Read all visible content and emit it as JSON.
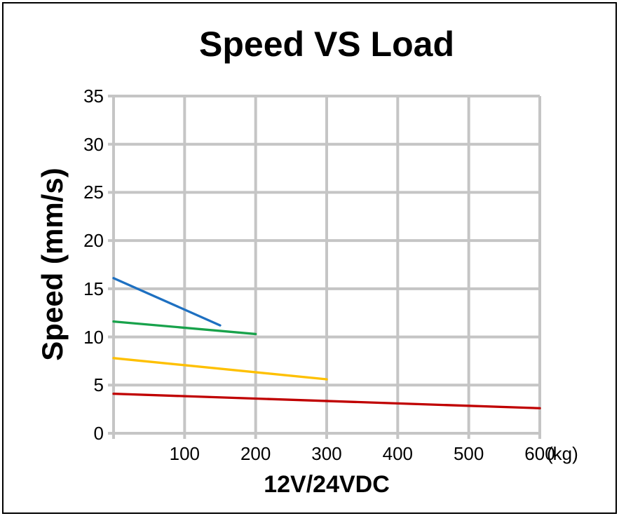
{
  "chart_data": {
    "type": "line",
    "title": "Speed VS Load",
    "xlabel": "12V/24VDC",
    "ylabel": "Speed (mm/s)",
    "x_unit": "(kg)",
    "xlim": [
      0,
      600
    ],
    "ylim": [
      0,
      35
    ],
    "x_ticks": [
      100,
      200,
      300,
      400,
      500,
      600
    ],
    "y_ticks": [
      0,
      5,
      10,
      15,
      20,
      25,
      30,
      35
    ],
    "grid": true,
    "legend_position": "none",
    "grid_color": "#c5c5c5",
    "background_color": "#ffffff",
    "series": [
      {
        "name": "blue-line",
        "color": "#1e70c1",
        "points": [
          [
            0,
            16.1
          ],
          [
            150,
            11.2
          ]
        ]
      },
      {
        "name": "green-line",
        "color": "#18a24b",
        "points": [
          [
            0,
            11.6
          ],
          [
            200,
            10.3
          ]
        ]
      },
      {
        "name": "yellow-line",
        "color": "#fec000",
        "points": [
          [
            0,
            7.8
          ],
          [
            300,
            5.6
          ]
        ]
      },
      {
        "name": "red-line",
        "color": "#c00000",
        "points": [
          [
            0,
            4.1
          ],
          [
            600,
            2.6
          ]
        ]
      }
    ]
  }
}
